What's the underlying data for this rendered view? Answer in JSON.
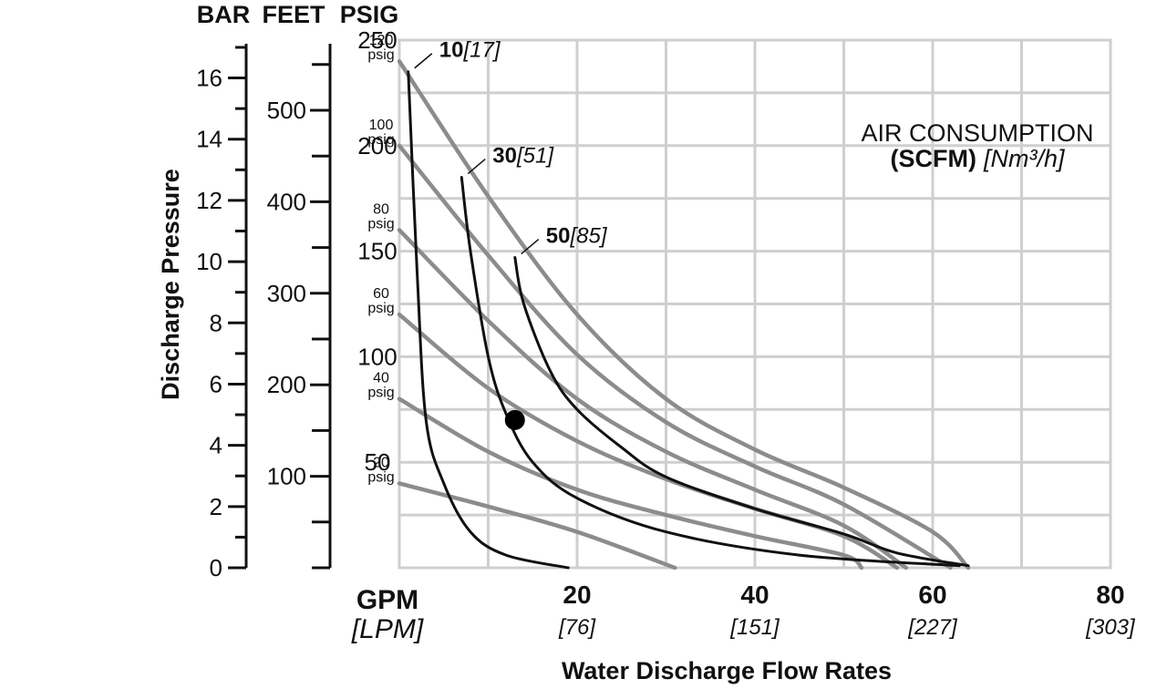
{
  "chart_data": {
    "type": "line",
    "title": "",
    "xlabel": "Water Discharge Flow Rates",
    "x_unit_primary": "GPM",
    "x_unit_secondary": "[LPM]",
    "xlim": [
      0,
      80
    ],
    "x_ticks": [
      {
        "value": 20,
        "label": "20",
        "sub": "[76]"
      },
      {
        "value": 40,
        "label": "40",
        "sub": "[151]"
      },
      {
        "value": 60,
        "label": "60",
        "sub": "[227]"
      },
      {
        "value": 80,
        "label": "80",
        "sub": "[303]"
      }
    ],
    "ylabel": "Discharge Pressure",
    "ylim_psig": [
      0,
      250
    ],
    "axes": {
      "bar": {
        "header": "BAR",
        "ticks": [
          "0",
          "2",
          "4",
          "6",
          "8",
          "10",
          "12",
          "14",
          "16"
        ],
        "values": [
          0,
          2,
          4,
          6,
          8,
          10,
          12,
          14,
          16
        ]
      },
      "feet": {
        "header": "FEET",
        "ticks": [
          "100",
          "200",
          "300",
          "400",
          "500"
        ],
        "values": [
          100,
          200,
          300,
          400,
          500
        ]
      },
      "psig": {
        "header": "PSIG",
        "ticks": [
          "50",
          "100",
          "150",
          "200",
          "250"
        ],
        "values": [
          50,
          100,
          150,
          200,
          250
        ]
      }
    },
    "grid": true,
    "air_pressure_curves": [
      {
        "label_top": "20",
        "label_bottom": "psig",
        "points": [
          [
            0,
            40
          ],
          [
            10,
            29
          ],
          [
            20,
            17
          ],
          [
            31,
            0
          ]
        ]
      },
      {
        "label_top": "40",
        "label_bottom": "psig",
        "points": [
          [
            0,
            80
          ],
          [
            10,
            55
          ],
          [
            20,
            37
          ],
          [
            30,
            25
          ],
          [
            40,
            15
          ],
          [
            50,
            6
          ],
          [
            52,
            0
          ]
        ]
      },
      {
        "label_top": "60",
        "label_bottom": "psig",
        "points": [
          [
            0,
            120
          ],
          [
            10,
            85
          ],
          [
            20,
            60
          ],
          [
            30,
            42
          ],
          [
            40,
            28
          ],
          [
            50,
            15
          ],
          [
            56,
            0
          ]
        ]
      },
      {
        "label_top": "80",
        "label_bottom": "psig",
        "points": [
          [
            0,
            160
          ],
          [
            10,
            117
          ],
          [
            20,
            80
          ],
          [
            30,
            55
          ],
          [
            40,
            37
          ],
          [
            50,
            20
          ],
          [
            57,
            0
          ]
        ]
      },
      {
        "label_top": "100",
        "label_bottom": "psig",
        "points": [
          [
            0,
            200
          ],
          [
            10,
            148
          ],
          [
            20,
            101
          ],
          [
            30,
            69
          ],
          [
            40,
            48
          ],
          [
            50,
            30
          ],
          [
            62,
            0
          ]
        ]
      },
      {
        "label_top": "120",
        "label_bottom": "psig",
        "points": [
          [
            0,
            240
          ],
          [
            10,
            176
          ],
          [
            20,
            120
          ],
          [
            30,
            80
          ],
          [
            40,
            56
          ],
          [
            50,
            38
          ],
          [
            60,
            17
          ],
          [
            64,
            0
          ]
        ]
      }
    ],
    "air_consumption_title_line1": "AIR CONSUMPTION",
    "air_consumption_title_line2_bold": "(SCFM)",
    "air_consumption_title_line2_ital": "[Nm³/h]",
    "air_consumption_curves": [
      {
        "label_bold": "10",
        "label_ital": "[17]",
        "points": [
          [
            1,
            235
          ],
          [
            2,
            140
          ],
          [
            3,
            70
          ],
          [
            5,
            40
          ],
          [
            8,
            17
          ],
          [
            12,
            6
          ],
          [
            19,
            0
          ]
        ]
      },
      {
        "label_bold": "30",
        "label_ital": "[51]",
        "points": [
          [
            7,
            185
          ],
          [
            8,
            150
          ],
          [
            10,
            100
          ],
          [
            12,
            73
          ],
          [
            15,
            50
          ],
          [
            20,
            33
          ],
          [
            30,
            17
          ],
          [
            45,
            6
          ],
          [
            63,
            1
          ]
        ]
      },
      {
        "label_bold": "50",
        "label_ital": "[85]",
        "points": [
          [
            13,
            147
          ],
          [
            14,
            125
          ],
          [
            17,
            93
          ],
          [
            20,
            75
          ],
          [
            25,
            57
          ],
          [
            30,
            43
          ],
          [
            40,
            28
          ],
          [
            50,
            16
          ],
          [
            56,
            7
          ],
          [
            64,
            1
          ]
        ]
      }
    ],
    "marker": {
      "x": 13,
      "y": 70
    }
  }
}
